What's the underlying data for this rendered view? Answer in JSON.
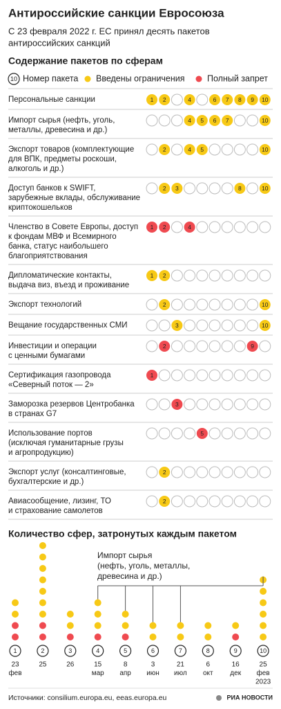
{
  "title": "Антироссийские санкции Евросоюза",
  "subtitle": [
    "С 23 февраля 2022 г. ЕС принял десять пакетов",
    "антироссийских санкций"
  ],
  "grid_section": {
    "heading": "Содержание пакетов по сферам",
    "legend": {
      "package": {
        "sample": 10,
        "label": "Номер пакета"
      },
      "restricted": {
        "label": "Введены ограничения",
        "color": "#f7c916"
      },
      "banned": {
        "label": "Полный запрет",
        "color": "#ef4a50"
      }
    },
    "rows": [
      {
        "label": [
          "Персональные санкции"
        ],
        "restricted": [
          1,
          2,
          4,
          6,
          7,
          8,
          9,
          10
        ],
        "banned": []
      },
      {
        "label": [
          "Импорт сырья (нефть, уголь,",
          "металлы, древесина и др.)"
        ],
        "restricted": [
          4,
          5,
          6,
          7,
          10
        ],
        "banned": []
      },
      {
        "label": [
          "Экспорт товаров (комплектующие",
          "для ВПК, предметы роскоши,",
          "алкоголь и др.)"
        ],
        "restricted": [
          2,
          4,
          5,
          10
        ],
        "banned": []
      },
      {
        "label": [
          "Доступ банков к SWIFT,",
          "зарубежные вклады, обслуживание",
          "криптокошельков"
        ],
        "restricted": [
          2,
          3,
          8,
          10
        ],
        "banned": []
      },
      {
        "label": [
          "Членство в Совете Европы, доступ",
          "к фондам МВФ и Всемирного",
          "банка, статус наибольшего",
          "благоприятствования"
        ],
        "restricted": [],
        "banned": [
          1,
          2,
          4
        ]
      },
      {
        "label": [
          "Дипломатические контакты,",
          "выдача виз, въезд и проживание"
        ],
        "restricted": [
          1,
          2
        ],
        "banned": []
      },
      {
        "label": [
          "Экспорт технологий"
        ],
        "restricted": [
          2,
          10
        ],
        "banned": []
      },
      {
        "label": [
          "Вещание государственных СМИ"
        ],
        "restricted": [
          3,
          10
        ],
        "banned": []
      },
      {
        "label": [
          "Инвестиции и операции",
          "с ценными бумагами"
        ],
        "restricted": [],
        "banned": [
          2,
          9
        ]
      },
      {
        "label": [
          "Сертификация газопровода",
          "«Северный поток — 2»"
        ],
        "restricted": [],
        "banned": [
          1
        ]
      },
      {
        "label": [
          "Заморозка резервов Центробанка",
          "в странах G7"
        ],
        "restricted": [],
        "banned": [
          3
        ]
      },
      {
        "label": [
          "Использование портов",
          "(исключая гуманитарные грузы",
          "и агропродукцию)"
        ],
        "restricted": [],
        "banned": [
          5
        ]
      },
      {
        "label": [
          "Экспорт услуг (консалтинговые,",
          "бухгалтерские и др.)"
        ],
        "restricted": [
          2
        ],
        "banned": []
      },
      {
        "label": [
          "Авиасообщение, лизинг, ТО",
          "и страхование самолетов"
        ],
        "restricted": [
          2
        ],
        "banned": []
      }
    ]
  },
  "count_section": {
    "heading": "Количество сфер, затронутых каждым пакетом",
    "annotation": [
      "Импорт сырья",
      "(нефть, уголь, металлы,",
      "древесина и др.)"
    ],
    "packages": [
      {
        "number": 1,
        "date": [
          "23",
          "фев"
        ]
      },
      {
        "number": 2,
        "date": [
          "25"
        ]
      },
      {
        "number": 3,
        "date": [
          "26"
        ]
      },
      {
        "number": 4,
        "date": [
          "15",
          "мар"
        ]
      },
      {
        "number": 5,
        "date": [
          "8",
          "апр"
        ]
      },
      {
        "number": 6,
        "date": [
          "3",
          "июн"
        ]
      },
      {
        "number": 7,
        "date": [
          "21",
          "июл"
        ]
      },
      {
        "number": 8,
        "date": [
          "6",
          "окт"
        ]
      },
      {
        "number": 9,
        "date": [
          "16",
          "дек"
        ]
      },
      {
        "number": 10,
        "date": [
          "25",
          "фев",
          "2023"
        ]
      }
    ]
  },
  "source": "Источники: consilium.europa.eu, eeas.europa.eu",
  "logo": "РИА НОВОСТИ"
}
